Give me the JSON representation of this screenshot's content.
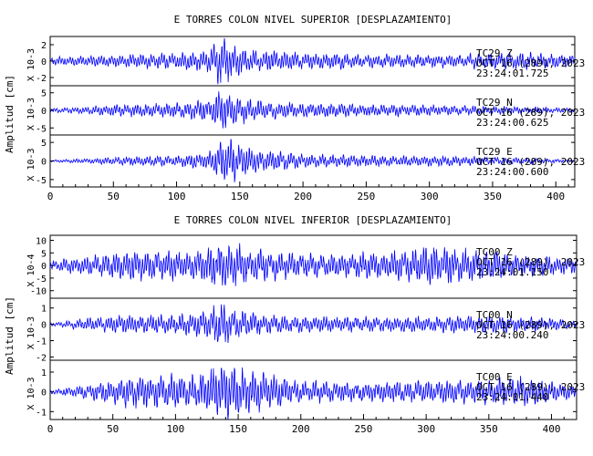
{
  "chart_data": [
    {
      "type": "line",
      "title": "E TORRES COLON NIVEL SUPERIOR [DESPLAZAMIENTO]",
      "ylabel": "Amplitud [cm]",
      "xlim": [
        0,
        415
      ],
      "xticks": [
        0,
        50,
        100,
        150,
        200,
        250,
        300,
        350,
        400
      ],
      "panels": [
        {
          "scale_label": "X 10-3",
          "yticks": [
            -2,
            0,
            2
          ],
          "ylim": [
            -3,
            3
          ],
          "annotation": [
            "TC29   Z",
            "OCT 16 (289), 2023",
            "23:24:01.725"
          ],
          "envelope": {
            "x": [
              0,
              30,
              60,
              90,
              120,
              130,
              135,
              145,
              160,
              200,
              250,
              300,
              340,
              380,
              415
            ],
            "amp": [
              0.5,
              0.7,
              0.8,
              1.0,
              1.2,
              2.0,
              3.5,
              2.0,
              1.4,
              1.1,
              0.9,
              0.8,
              1.0,
              1.1,
              0.8
            ]
          }
        },
        {
          "scale_label": "X 10-3",
          "yticks": [
            -5,
            0,
            5
          ],
          "ylim": [
            -7,
            7
          ],
          "annotation": [
            "TC29   N",
            "OCT 16 (289), 2023",
            "23:24:00.625"
          ],
          "envelope": {
            "x": [
              0,
              20,
              60,
              100,
              125,
              135,
              145,
              160,
              200,
              260,
              300,
              340,
              380,
              415
            ],
            "amp": [
              0.6,
              1.0,
              1.8,
              2.2,
              3.5,
              6.0,
              4.5,
              3.0,
              2.0,
              1.8,
              1.6,
              1.3,
              1.0,
              0.6
            ]
          }
        },
        {
          "scale_label": "X 10-3",
          "yticks": [
            -5,
            0,
            5
          ],
          "ylim": [
            -7,
            7
          ],
          "annotation": [
            "TC29   E",
            "OCT 16 (289), 2023",
            "23:24:00.600"
          ],
          "envelope": {
            "x": [
              0,
              30,
              60,
              100,
              125,
              135,
              145,
              160,
              200,
              260,
              300,
              340,
              380,
              415
            ],
            "amp": [
              0.3,
              0.7,
              1.2,
              1.6,
              2.5,
              5.5,
              6.5,
              3.5,
              2.0,
              1.6,
              1.5,
              1.2,
              0.8,
              0.4
            ]
          }
        }
      ]
    },
    {
      "type": "line",
      "title": "E TORRES COLON NIVEL INFERIOR [DESPLAZAMIENTO]",
      "ylabel": "Amplitud [cm]",
      "xlim": [
        0,
        420
      ],
      "xticks": [
        0,
        50,
        100,
        150,
        200,
        250,
        300,
        350,
        400
      ],
      "panels": [
        {
          "scale_label": "X 10-4",
          "yticks": [
            -10,
            -5,
            0,
            5,
            10
          ],
          "ylim": [
            -13,
            12
          ],
          "annotation": [
            "TC00   Z",
            "OCT 16 (289), 2023",
            "23:24:01.150"
          ],
          "envelope": {
            "x": [
              0,
              30,
              60,
              90,
              110,
              130,
              140,
              160,
              200,
              240,
              280,
              300,
              330,
              370,
              420
            ],
            "amp": [
              2,
              4,
              6,
              7,
              5,
              9,
              10,
              7,
              5,
              5,
              6,
              8,
              7,
              5,
              3
            ]
          }
        },
        {
          "scale_label": "X 10-3",
          "yticks": [
            -2,
            -1,
            0,
            1
          ],
          "ylim": [
            -2.2,
            1.6
          ],
          "annotation": [
            "TC00   N",
            "OCT 16 (289), 2023",
            "23:24:00.240"
          ],
          "envelope": {
            "x": [
              0,
              30,
              60,
              100,
              125,
              135,
              145,
              170,
              220,
              260,
              300,
              350,
              400,
              420
            ],
            "amp": [
              0.1,
              0.4,
              0.6,
              0.6,
              0.8,
              1.7,
              1.0,
              0.6,
              0.5,
              0.5,
              0.5,
              0.6,
              0.4,
              0.2
            ]
          }
        },
        {
          "scale_label": "X 10-3",
          "yticks": [
            -1,
            0,
            1
          ],
          "ylim": [
            -1.4,
            1.6
          ],
          "annotation": [
            "TC00   E",
            "OCT 16 (289), 2023",
            "23:24:01.440"
          ],
          "envelope": {
            "x": [
              0,
              30,
              60,
              90,
              120,
              135,
              150,
              170,
              200,
              250,
              300,
              350,
              380,
              420
            ],
            "amp": [
              0.1,
              0.4,
              0.8,
              0.9,
              1.0,
              1.5,
              1.3,
              1.0,
              0.6,
              0.5,
              0.6,
              0.7,
              0.8,
              0.3
            ]
          }
        }
      ]
    }
  ],
  "colors": {
    "trace": "#0000ff",
    "axis": "#000000"
  }
}
